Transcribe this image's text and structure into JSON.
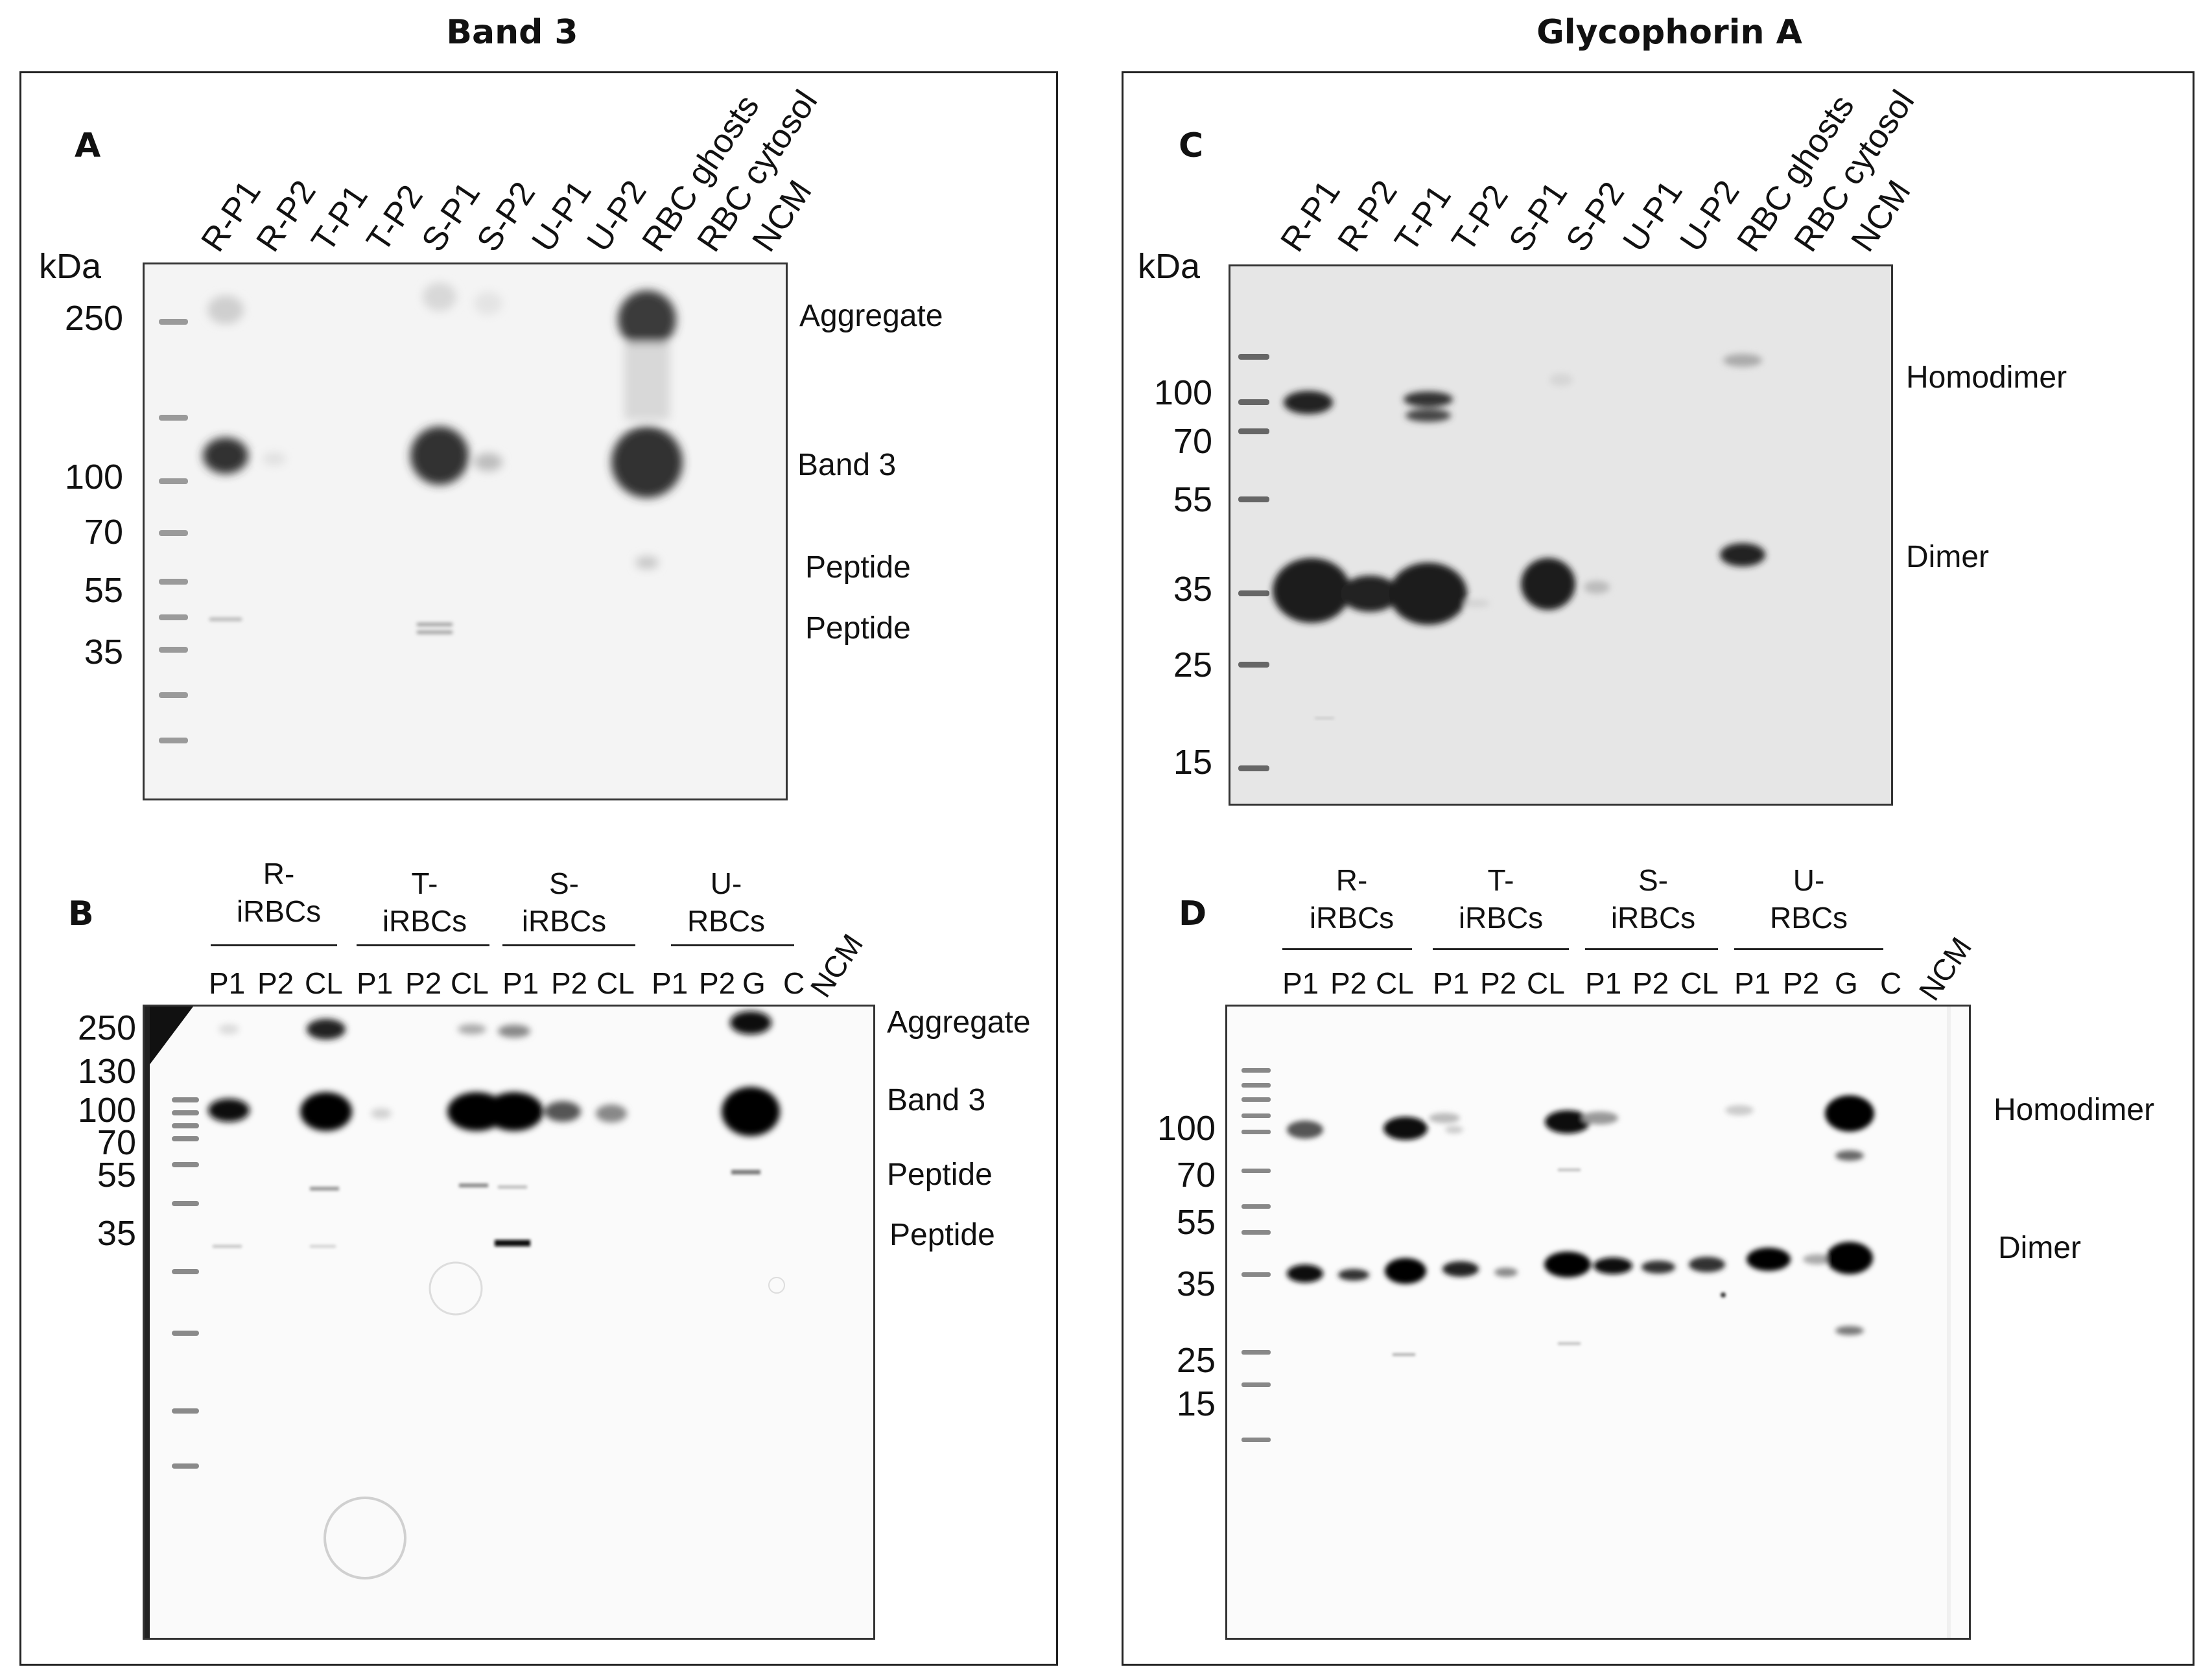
{
  "left_column_title": "Band 3",
  "right_column_title": "Glycophorin A",
  "panels": {
    "A": {
      "label": "A",
      "kda_label": "kDa",
      "lanes": [
        "R-P1",
        "R-P2",
        "T-P1",
        "T-P2",
        "S-P1",
        "S-P2",
        "U-P1",
        "U-P2",
        "RBC ghosts",
        "RBC cytosol",
        "NCM"
      ],
      "markers": [
        "250",
        "100",
        "70",
        "55",
        "35"
      ],
      "annotations": [
        "Aggregate",
        "Band 3",
        "Peptide",
        "Peptide"
      ]
    },
    "B": {
      "label": "B",
      "groups": [
        {
          "line1": "R-",
          "line2": "iRBCs",
          "lanes": [
            "P1",
            "P2",
            "CL"
          ]
        },
        {
          "line1": "T-",
          "line2": "iRBCs",
          "lanes": [
            "P1",
            "P2",
            "CL"
          ]
        },
        {
          "line1": "S-",
          "line2": "iRBCs",
          "lanes": [
            "P1",
            "P2",
            "CL"
          ]
        },
        {
          "line1": "U-",
          "line2": "RBCs",
          "lanes": [
            "P1",
            "P2",
            "G",
            "C"
          ]
        }
      ],
      "ncm": "NCM",
      "markers": [
        "250",
        "130",
        "100",
        "70",
        "55",
        "35"
      ],
      "annotations": [
        "Aggregate",
        "Band 3",
        "Peptide",
        "Peptide"
      ]
    },
    "C": {
      "label": "C",
      "kda_label": "kDa",
      "lanes": [
        "R-P1",
        "R-P2",
        "T-P1",
        "T-P2",
        "S-P1",
        "S-P2",
        "U-P1",
        "U-P2",
        "RBC ghosts",
        "RBC cytosol",
        "NCM"
      ],
      "markers": [
        "100",
        "70",
        "55",
        "35",
        "25",
        "15"
      ],
      "annotations": [
        "Homodimer",
        "Dimer"
      ]
    },
    "D": {
      "label": "D",
      "groups": [
        {
          "line1": "R-",
          "line2": "iRBCs",
          "lanes": [
            "P1",
            "P2",
            "CL"
          ]
        },
        {
          "line1": "T-",
          "line2": "iRBCs",
          "lanes": [
            "P1",
            "P2",
            "CL"
          ]
        },
        {
          "line1": "S-",
          "line2": "iRBCs",
          "lanes": [
            "P1",
            "P2",
            "CL"
          ]
        },
        {
          "line1": "U-",
          "line2": "RBCs",
          "lanes": [
            "P1",
            "P2",
            "G",
            "C"
          ]
        }
      ],
      "ncm": "NCM",
      "markers": [
        "100",
        "70",
        "55",
        "35",
        "25",
        "15"
      ],
      "annotations": [
        "Homodimer",
        "Dimer"
      ]
    }
  }
}
